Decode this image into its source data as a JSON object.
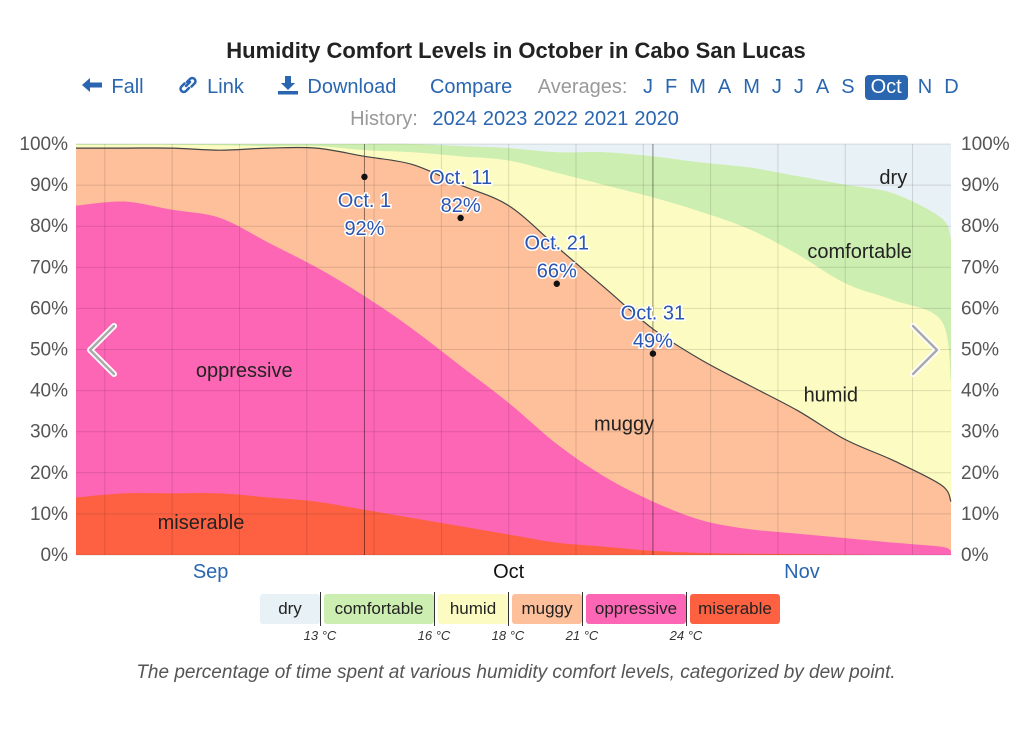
{
  "title": "Humidity Comfort Levels in October in Cabo San Lucas",
  "nav": {
    "prev_label": "Fall",
    "link_label": "Link",
    "download_label": "Download",
    "compare_label": "Compare",
    "averages_label": "Averages:",
    "months": [
      "J",
      "F",
      "M",
      "A",
      "M",
      "J",
      "J",
      "A",
      "S",
      "Oct",
      "N",
      "D"
    ],
    "active_month_index": 9
  },
  "history": {
    "label": "History:",
    "years": [
      "2024",
      "2023",
      "2022",
      "2021",
      "2020"
    ]
  },
  "caption": "The percentage of time spent at various humidity comfort levels, categorized by dew point.",
  "legend": {
    "items": [
      {
        "name": "dry",
        "color": "#e8f1f5"
      },
      {
        "name": "comfortable",
        "color": "#cdeeb1"
      },
      {
        "name": "humid",
        "color": "#fcfcc2"
      },
      {
        "name": "muggy",
        "color": "#fdc09b"
      },
      {
        "name": "oppressive",
        "color": "#fd66b4"
      },
      {
        "name": "miserable",
        "color": "#fd6142"
      }
    ],
    "thresholds": [
      "13 °C",
      "16 °C",
      "18 °C",
      "21 °C",
      "24 °C"
    ]
  },
  "chart_data": {
    "type": "area",
    "stacked": true,
    "x_unit": "day offset from Oct 1",
    "x": [
      -30,
      -25,
      -20,
      -15,
      -10,
      -5,
      0,
      5,
      10,
      15,
      20,
      25,
      30,
      35,
      40,
      45,
      50,
      55,
      60,
      61
    ],
    "series": [
      {
        "name": "miserable",
        "color": "#fd6142",
        "values": [
          14,
          15,
          15,
          15,
          14,
          13,
          11,
          9,
          7,
          5,
          3,
          2,
          1,
          0.5,
          0.3,
          0.2,
          0.1,
          0,
          0,
          0
        ]
      },
      {
        "name": "oppressive",
        "color": "#fd66b4",
        "values": [
          71,
          71,
          69,
          67,
          62,
          57,
          52,
          46,
          39,
          32,
          24,
          17,
          12,
          8,
          6,
          5,
          4,
          3,
          2,
          1
        ]
      },
      {
        "name": "muggy",
        "color": "#fdc09b",
        "values": [
          14,
          13,
          15,
          16.5,
          23,
          29,
          34,
          40,
          44,
          48,
          48,
          46,
          42,
          39,
          35,
          30,
          24,
          20,
          15,
          12
        ]
      },
      {
        "name": "humid",
        "color": "#fcfcc2",
        "values": [
          0.8,
          0.8,
          0.8,
          1.2,
          0.5,
          0.5,
          1.5,
          3,
          7,
          11,
          18,
          25,
          32,
          36,
          38,
          38,
          38,
          39,
          40,
          29
        ]
      },
      {
        "name": "comfortable",
        "color": "#cdeeb1",
        "values": [
          0.2,
          0.2,
          0.2,
          0.3,
          0.5,
          0.5,
          1.5,
          2,
          2.5,
          3,
          5,
          8,
          10,
          12,
          15,
          19,
          24,
          26,
          25,
          35
        ]
      },
      {
        "name": "dry",
        "color": "#e8f1f5",
        "values": [
          0,
          0,
          0,
          0,
          0,
          0,
          0,
          0,
          0.5,
          1,
          2,
          2,
          3,
          4.5,
          5.7,
          7.8,
          9.9,
          12,
          18,
          23
        ]
      }
    ],
    "x_ticks": [
      {
        "x": -16,
        "label": "Sep"
      },
      {
        "x": 15,
        "label": "Oct"
      },
      {
        "x": 45.5,
        "label": "Nov"
      }
    ],
    "y_ticks": [
      "0%",
      "10%",
      "20%",
      "30%",
      "40%",
      "50%",
      "60%",
      "70%",
      "80%",
      "90%",
      "100%"
    ],
    "ylim": [
      0,
      100
    ],
    "annotations": [
      {
        "x": 0,
        "y": 92,
        "date": "Oct. 1",
        "value": "92%"
      },
      {
        "x": 10,
        "y": 82,
        "date": "Oct. 11",
        "value": "82%"
      },
      {
        "x": 20,
        "y": 66,
        "date": "Oct. 21",
        "value": "66%"
      },
      {
        "x": 30,
        "y": 49,
        "date": "Oct. 31",
        "value": "49%"
      }
    ],
    "area_labels": [
      {
        "text": "dry",
        "series": "dry",
        "x": 55,
        "y": 92
      },
      {
        "text": "comfortable",
        "series": "comfortable",
        "x": 51.5,
        "y": 74
      },
      {
        "text": "humid",
        "series": "humid",
        "x": 48.5,
        "y": 39
      },
      {
        "text": "muggy",
        "series": "muggy",
        "x": 27,
        "y": 32
      },
      {
        "text": "oppressive",
        "series": "oppressive",
        "x": -12.5,
        "y": 45
      },
      {
        "text": "miserable",
        "series": "miserable",
        "x": -17,
        "y": 8
      }
    ]
  }
}
